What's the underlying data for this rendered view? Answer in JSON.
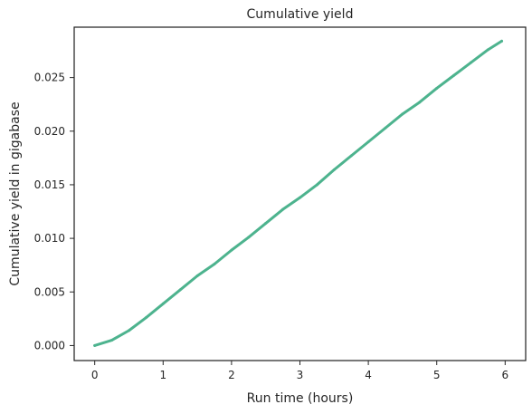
{
  "chart_data": {
    "type": "line",
    "title": "Cumulative yield",
    "xlabel": "Run time (hours)",
    "ylabel": "Cumulative yield in gigabase",
    "xlim": [
      -0.3,
      6.3
    ],
    "ylim": [
      -0.0014,
      0.0297
    ],
    "xticks": [
      0,
      1,
      2,
      3,
      4,
      5,
      6
    ],
    "xtick_labels": [
      "0",
      "1",
      "2",
      "3",
      "4",
      "5",
      "6"
    ],
    "yticks": [
      0.0,
      0.005,
      0.01,
      0.015,
      0.02,
      0.025
    ],
    "ytick_labels": [
      "0.000",
      "0.005",
      "0.010",
      "0.015",
      "0.020",
      "0.025"
    ],
    "grid": false,
    "legend": "none",
    "colors": {
      "line": "#4db38e",
      "axes": "#262626",
      "background": "#ffffff"
    },
    "series": [
      {
        "x": [
          0,
          0.25,
          0.5,
          0.75,
          1.0,
          1.25,
          1.5,
          1.75,
          2.0,
          2.25,
          2.5,
          2.75,
          3.0,
          3.25,
          3.5,
          3.75,
          4.0,
          4.25,
          4.5,
          4.75,
          5.0,
          5.25,
          5.5,
          5.75,
          5.95
        ],
        "y": [
          0.0,
          0.0005,
          0.0014,
          0.0026,
          0.0039,
          0.0052,
          0.0065,
          0.0076,
          0.0089,
          0.0101,
          0.0114,
          0.0127,
          0.0138,
          0.015,
          0.0164,
          0.0177,
          0.019,
          0.0203,
          0.0216,
          0.0227,
          0.024,
          0.0252,
          0.0264,
          0.0276,
          0.0284
        ]
      }
    ]
  }
}
